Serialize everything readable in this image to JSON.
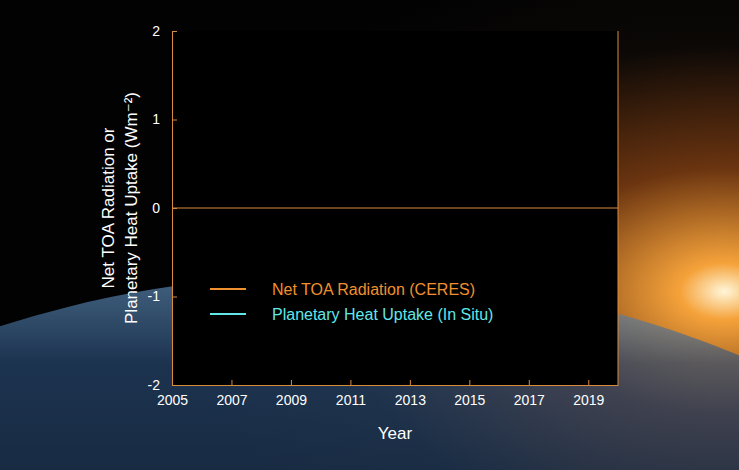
{
  "chart_data": {
    "type": "line",
    "x_label": "Year",
    "y_label": [
      "Net TOA Radiation or",
      "Planetary Heat Uptake (Wm⁻²)"
    ],
    "x": [],
    "series": [
      {
        "name": "Net TOA Radiation (CERES)",
        "color": "#f0902e",
        "values": []
      },
      {
        "name": "Planetary Heat Uptake (In Situ)",
        "color": "#62e6e8",
        "values": []
      }
    ],
    "hlines": [
      0
    ],
    "xlim": [
      2005,
      2020
    ],
    "xticks": [
      2005,
      2007,
      2009,
      2011,
      2013,
      2015,
      2017,
      2019
    ],
    "ylim": [
      -2,
      2
    ],
    "yticks": [
      -2,
      -1,
      0,
      1,
      2
    ]
  }
}
